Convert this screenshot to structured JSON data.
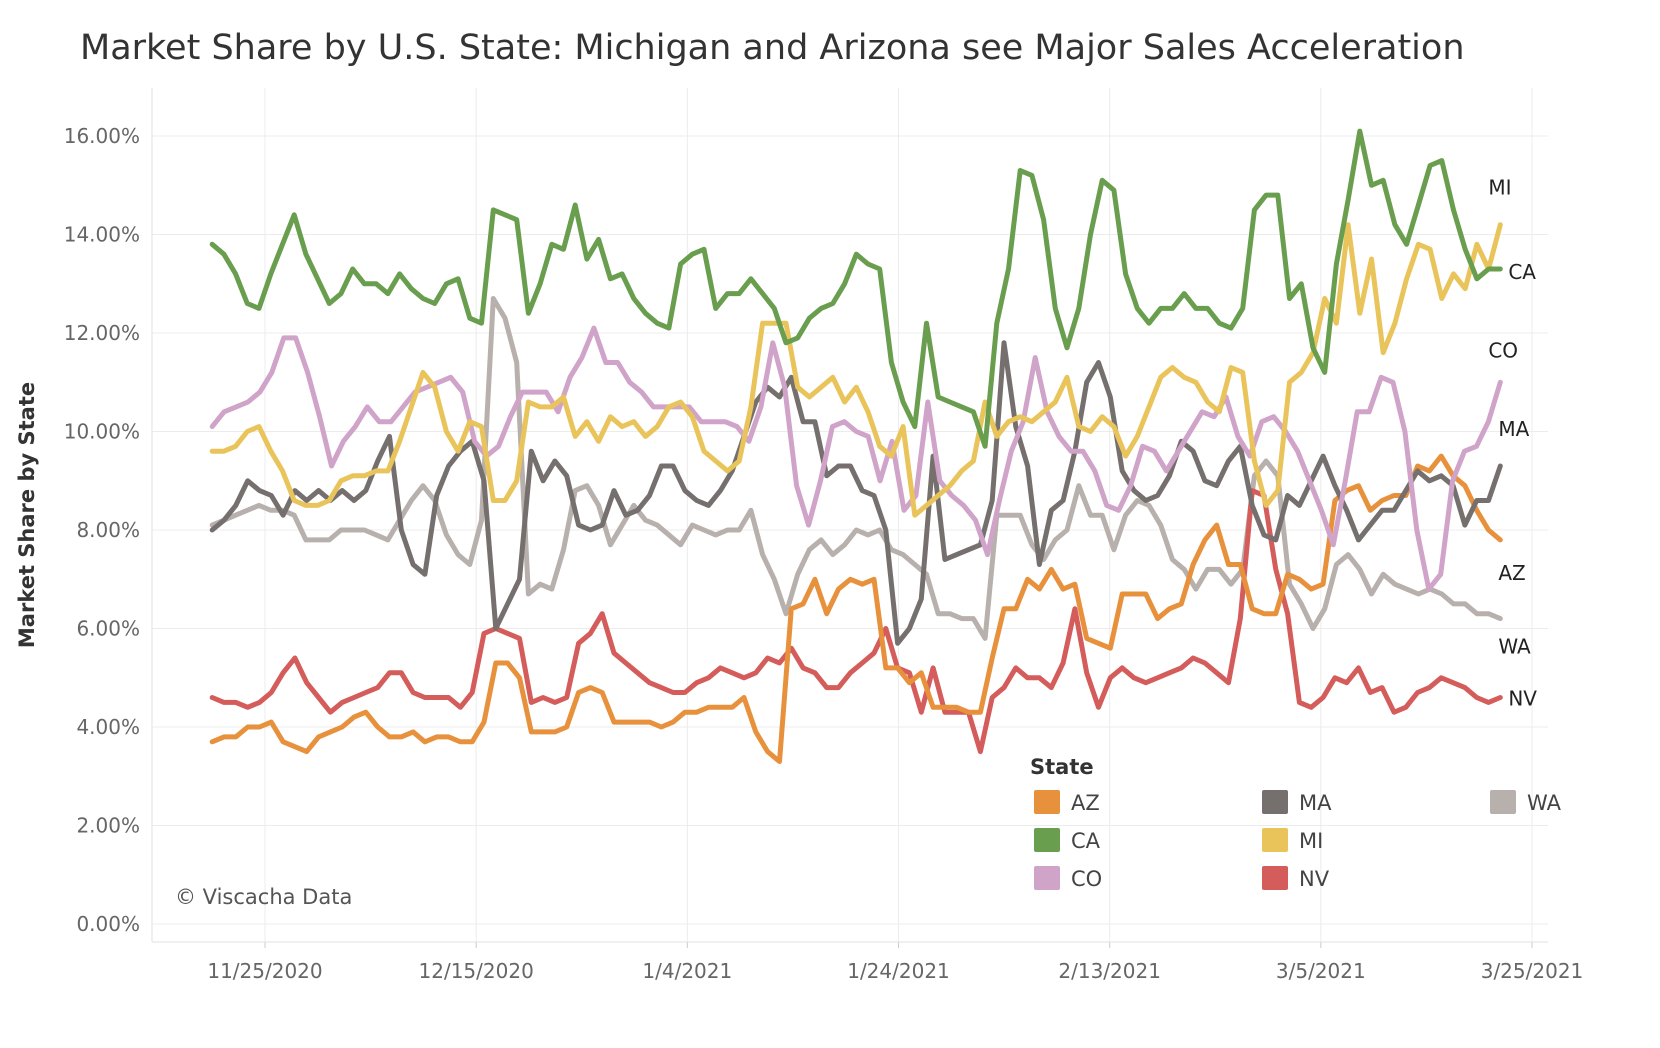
{
  "chart_data": {
    "type": "line",
    "title": "Market Share by U.S. State: Michigan and Arizona see Major Sales Acceleration",
    "ylabel": "Market Share by State",
    "xlabel": "",
    "ylim": [
      0,
      17
    ],
    "x_ticks": [
      "11/25/2020",
      "12/15/2020",
      "1/4/2021",
      "1/24/2021",
      "2/13/2021",
      "3/5/2021",
      "3/25/2021"
    ],
    "y_ticks": [
      "0.00%",
      "2.00%",
      "4.00%",
      "6.00%",
      "8.00%",
      "10.00%",
      "12.00%",
      "14.00%",
      "16.00%"
    ],
    "x_start": "2020-11-20",
    "x_end": "2021-03-22",
    "grid": true,
    "legend": {
      "title": "State",
      "placement": "bottom-right",
      "entries": [
        "AZ",
        "MA",
        "WA",
        "CA",
        "MI",
        "CO",
        "NV"
      ]
    },
    "credit": "© Viscacha Data",
    "series": [
      {
        "name": "CA",
        "color": "#6a9e4f",
        "end_label": "CA",
        "values": [
          13.8,
          13.6,
          13.2,
          12.6,
          12.5,
          13.2,
          13.8,
          14.4,
          13.6,
          13.1,
          12.6,
          12.8,
          13.3,
          13.0,
          13.0,
          12.8,
          13.2,
          12.9,
          12.7,
          12.6,
          13.0,
          13.1,
          12.3,
          12.2,
          14.5,
          14.4,
          14.3,
          12.4,
          13.0,
          13.8,
          13.7,
          14.6,
          13.5,
          13.9,
          13.1,
          13.2,
          12.7,
          12.4,
          12.2,
          12.1,
          13.4,
          13.6,
          13.7,
          12.5,
          12.8,
          12.8,
          13.1,
          12.8,
          12.5,
          11.8,
          11.9,
          12.3,
          12.5,
          12.6,
          13.0,
          13.6,
          13.4,
          13.3,
          11.4,
          10.6,
          10.1,
          12.2,
          10.7,
          10.6,
          10.5,
          10.4,
          9.7,
          12.2,
          13.3,
          15.3,
          15.2,
          14.3,
          12.5,
          11.7,
          12.5,
          14.0,
          15.1,
          14.9,
          13.2,
          12.5,
          12.2,
          12.5,
          12.5,
          12.8,
          12.5,
          12.5,
          12.2,
          12.1,
          12.5,
          14.5,
          14.8,
          14.8,
          12.7,
          13.0,
          11.7,
          11.2,
          13.4,
          14.7,
          16.1,
          15.0,
          15.1,
          14.2,
          13.8,
          14.6,
          15.4,
          15.5,
          14.5,
          13.7,
          13.1,
          13.3,
          13.3
        ]
      },
      {
        "name": "MI",
        "color": "#e9c45b",
        "end_label": "MI",
        "values": [
          9.6,
          9.6,
          9.7,
          10.0,
          10.1,
          9.6,
          9.2,
          8.6,
          8.5,
          8.5,
          8.6,
          9.0,
          9.1,
          9.1,
          9.2,
          9.2,
          9.8,
          10.5,
          11.2,
          10.9,
          10.0,
          9.6,
          10.2,
          10.1,
          8.6,
          8.6,
          9.0,
          10.6,
          10.5,
          10.5,
          10.7,
          9.9,
          10.2,
          9.8,
          10.3,
          10.1,
          10.2,
          9.9,
          10.1,
          10.5,
          10.6,
          10.3,
          9.6,
          9.4,
          9.2,
          9.4,
          10.5,
          12.2,
          12.2,
          12.2,
          10.9,
          10.7,
          10.9,
          11.1,
          10.6,
          10.9,
          10.4,
          9.7,
          9.5,
          10.1,
          8.3,
          8.5,
          8.7,
          8.9,
          9.2,
          9.4,
          10.6,
          9.9,
          10.2,
          10.3,
          10.2,
          10.4,
          10.6,
          11.1,
          10.1,
          10.0,
          10.3,
          10.1,
          9.5,
          9.9,
          10.5,
          11.1,
          11.3,
          11.1,
          11.0,
          10.6,
          10.4,
          11.3,
          11.2,
          9.4,
          8.5,
          8.8,
          11.0,
          11.2,
          11.6,
          12.7,
          12.2,
          14.2,
          12.4,
          13.5,
          11.6,
          12.2,
          13.1,
          13.8,
          13.7,
          12.7,
          13.2,
          12.9,
          13.8,
          13.3,
          14.2
        ]
      },
      {
        "name": "CO",
        "color": "#d0a3c9",
        "end_label": "CO",
        "values": [
          10.1,
          10.4,
          10.5,
          10.6,
          10.8,
          11.2,
          11.9,
          11.9,
          11.2,
          10.3,
          9.3,
          9.8,
          10.1,
          10.5,
          10.2,
          10.2,
          10.5,
          10.8,
          10.9,
          11.0,
          11.1,
          10.8,
          9.8,
          9.5,
          9.7,
          10.3,
          10.8,
          10.8,
          10.8,
          10.4,
          11.1,
          11.5,
          12.1,
          11.4,
          11.4,
          11.0,
          10.8,
          10.5,
          10.5,
          10.5,
          10.5,
          10.2,
          10.2,
          10.2,
          10.1,
          9.8,
          10.5,
          11.8,
          10.9,
          8.9,
          8.1,
          9.0,
          10.1,
          10.2,
          10.0,
          9.9,
          9.0,
          9.8,
          8.4,
          8.7,
          10.6,
          9.0,
          8.7,
          8.5,
          8.2,
          7.5,
          8.6,
          9.6,
          10.2,
          11.5,
          10.4,
          9.9,
          9.6,
          9.6,
          9.2,
          8.5,
          8.4,
          8.9,
          9.7,
          9.6,
          9.2,
          9.6,
          10.0,
          10.4,
          10.3,
          10.7,
          9.9,
          9.5,
          10.2,
          10.3,
          10.0,
          9.6,
          9.0,
          8.4,
          7.7,
          9.0,
          10.4,
          10.4,
          11.1,
          11.0,
          10.0,
          8.0,
          6.8,
          7.1,
          9.0,
          9.6,
          9.7,
          10.2,
          11.0
        ]
      },
      {
        "name": "MA",
        "color": "#75706e",
        "end_label": "MA",
        "values": [
          8.0,
          8.2,
          8.5,
          9.0,
          8.8,
          8.7,
          8.3,
          8.8,
          8.6,
          8.8,
          8.6,
          8.8,
          8.6,
          8.8,
          9.4,
          9.9,
          8.0,
          7.3,
          7.1,
          8.7,
          9.3,
          9.6,
          9.8,
          9.0,
          6.0,
          6.5,
          7.0,
          9.6,
          9.0,
          9.4,
          9.1,
          8.1,
          8.0,
          8.1,
          8.8,
          8.3,
          8.4,
          8.7,
          9.3,
          9.3,
          8.8,
          8.6,
          8.5,
          8.8,
          9.2,
          9.9,
          10.6,
          10.9,
          10.7,
          11.1,
          10.2,
          10.2,
          9.1,
          9.3,
          9.3,
          8.8,
          8.7,
          8.0,
          5.7,
          6.0,
          6.6,
          9.5,
          7.4,
          7.5,
          7.6,
          7.7,
          8.6,
          11.8,
          10.1,
          9.3,
          7.3,
          8.4,
          8.6,
          9.6,
          11.0,
          11.4,
          10.7,
          9.2,
          8.8,
          8.6,
          8.7,
          9.1,
          9.8,
          9.6,
          9.0,
          8.9,
          9.4,
          9.7,
          8.5,
          7.9,
          7.8,
          8.7,
          8.5,
          9.0,
          9.5,
          8.9,
          8.4,
          7.8,
          8.1,
          8.4,
          8.4,
          8.8,
          9.2,
          9.0,
          9.1,
          8.9,
          8.1,
          8.6,
          8.6,
          9.3
        ]
      },
      {
        "name": "AZ",
        "color": "#e8913d",
        "end_label": "AZ",
        "values": [
          3.7,
          3.8,
          3.8,
          4.0,
          4.0,
          4.1,
          3.7,
          3.6,
          3.5,
          3.8,
          3.9,
          4.0,
          4.2,
          4.3,
          4.0,
          3.8,
          3.8,
          3.9,
          3.7,
          3.8,
          3.8,
          3.7,
          3.7,
          4.1,
          5.3,
          5.3,
          5.0,
          3.9,
          3.9,
          3.9,
          4.0,
          4.7,
          4.8,
          4.7,
          4.1,
          4.1,
          4.1,
          4.1,
          4.0,
          4.1,
          4.3,
          4.3,
          4.4,
          4.4,
          4.4,
          4.6,
          3.9,
          3.5,
          3.3,
          6.4,
          6.5,
          7.0,
          6.3,
          6.8,
          7.0,
          6.9,
          7.0,
          5.2,
          5.2,
          4.9,
          5.1,
          4.4,
          4.4,
          4.4,
          4.3,
          4.3,
          5.4,
          6.4,
          6.4,
          7.0,
          6.8,
          7.2,
          6.8,
          6.9,
          5.8,
          5.7,
          5.6,
          6.7,
          6.7,
          6.7,
          6.2,
          6.4,
          6.5,
          7.3,
          7.8,
          8.1,
          7.3,
          7.3,
          6.4,
          6.3,
          6.3,
          7.1,
          7.0,
          6.8,
          6.9,
          8.6,
          8.8,
          8.9,
          8.4,
          8.6,
          8.7,
          8.7,
          9.3,
          9.2,
          9.5,
          9.1,
          8.9,
          8.4,
          8.0,
          7.8
        ]
      },
      {
        "name": "WA",
        "color": "#b7b0ac",
        "end_label": "WA",
        "values": [
          8.1,
          8.2,
          8.3,
          8.4,
          8.5,
          8.4,
          8.4,
          8.3,
          7.8,
          7.8,
          7.8,
          8.0,
          8.0,
          8.0,
          7.9,
          7.8,
          8.2,
          8.6,
          8.9,
          8.6,
          7.9,
          7.5,
          7.3,
          8.2,
          12.7,
          12.3,
          11.4,
          6.7,
          6.9,
          6.8,
          7.6,
          8.8,
          8.9,
          8.5,
          7.7,
          8.1,
          8.5,
          8.2,
          8.1,
          7.9,
          7.7,
          8.1,
          8.0,
          7.9,
          8.0,
          8.0,
          8.4,
          7.5,
          7.0,
          6.3,
          7.1,
          7.6,
          7.8,
          7.5,
          7.7,
          8.0,
          7.9,
          8.0,
          7.6,
          7.5,
          7.3,
          7.1,
          6.3,
          6.3,
          6.2,
          6.2,
          5.8,
          8.3,
          8.3,
          8.3,
          7.7,
          7.4,
          7.8,
          8.0,
          8.9,
          8.3,
          8.3,
          7.6,
          8.3,
          8.6,
          8.5,
          8.1,
          7.4,
          7.2,
          6.8,
          7.2,
          7.2,
          6.9,
          7.2,
          9.1,
          9.4,
          9.1,
          6.9,
          6.5,
          6.0,
          6.4,
          7.3,
          7.5,
          7.2,
          6.7,
          7.1,
          6.9,
          6.8,
          6.7,
          6.8,
          6.7,
          6.5,
          6.5,
          6.3,
          6.3,
          6.2
        ]
      },
      {
        "name": "NV",
        "color": "#d45c5a",
        "end_label": "NV",
        "values": [
          4.6,
          4.5,
          4.5,
          4.4,
          4.5,
          4.7,
          5.1,
          5.4,
          4.9,
          4.6,
          4.3,
          4.5,
          4.6,
          4.7,
          4.8,
          5.1,
          5.1,
          4.7,
          4.6,
          4.6,
          4.6,
          4.4,
          4.7,
          5.9,
          6.0,
          5.9,
          5.8,
          4.5,
          4.6,
          4.5,
          4.6,
          5.7,
          5.9,
          6.3,
          5.5,
          5.3,
          5.1,
          4.9,
          4.8,
          4.7,
          4.7,
          4.9,
          5.0,
          5.2,
          5.1,
          5.0,
          5.1,
          5.4,
          5.3,
          5.6,
          5.2,
          5.1,
          4.8,
          4.8,
          5.1,
          5.3,
          5.5,
          6.0,
          5.2,
          5.1,
          4.3,
          5.2,
          4.3,
          4.3,
          4.3,
          3.5,
          4.6,
          4.8,
          5.2,
          5.0,
          5.0,
          4.8,
          5.3,
          6.4,
          5.1,
          4.4,
          5.0,
          5.2,
          5.0,
          4.9,
          5.0,
          5.1,
          5.2,
          5.4,
          5.3,
          5.1,
          4.9,
          6.2,
          8.8,
          8.7,
          7.2,
          6.3,
          4.5,
          4.4,
          4.6,
          5.0,
          4.9,
          5.2,
          4.7,
          4.8,
          4.3,
          4.4,
          4.7,
          4.8,
          5.0,
          4.9,
          4.8,
          4.6,
          4.5,
          4.6
        ]
      }
    ]
  }
}
